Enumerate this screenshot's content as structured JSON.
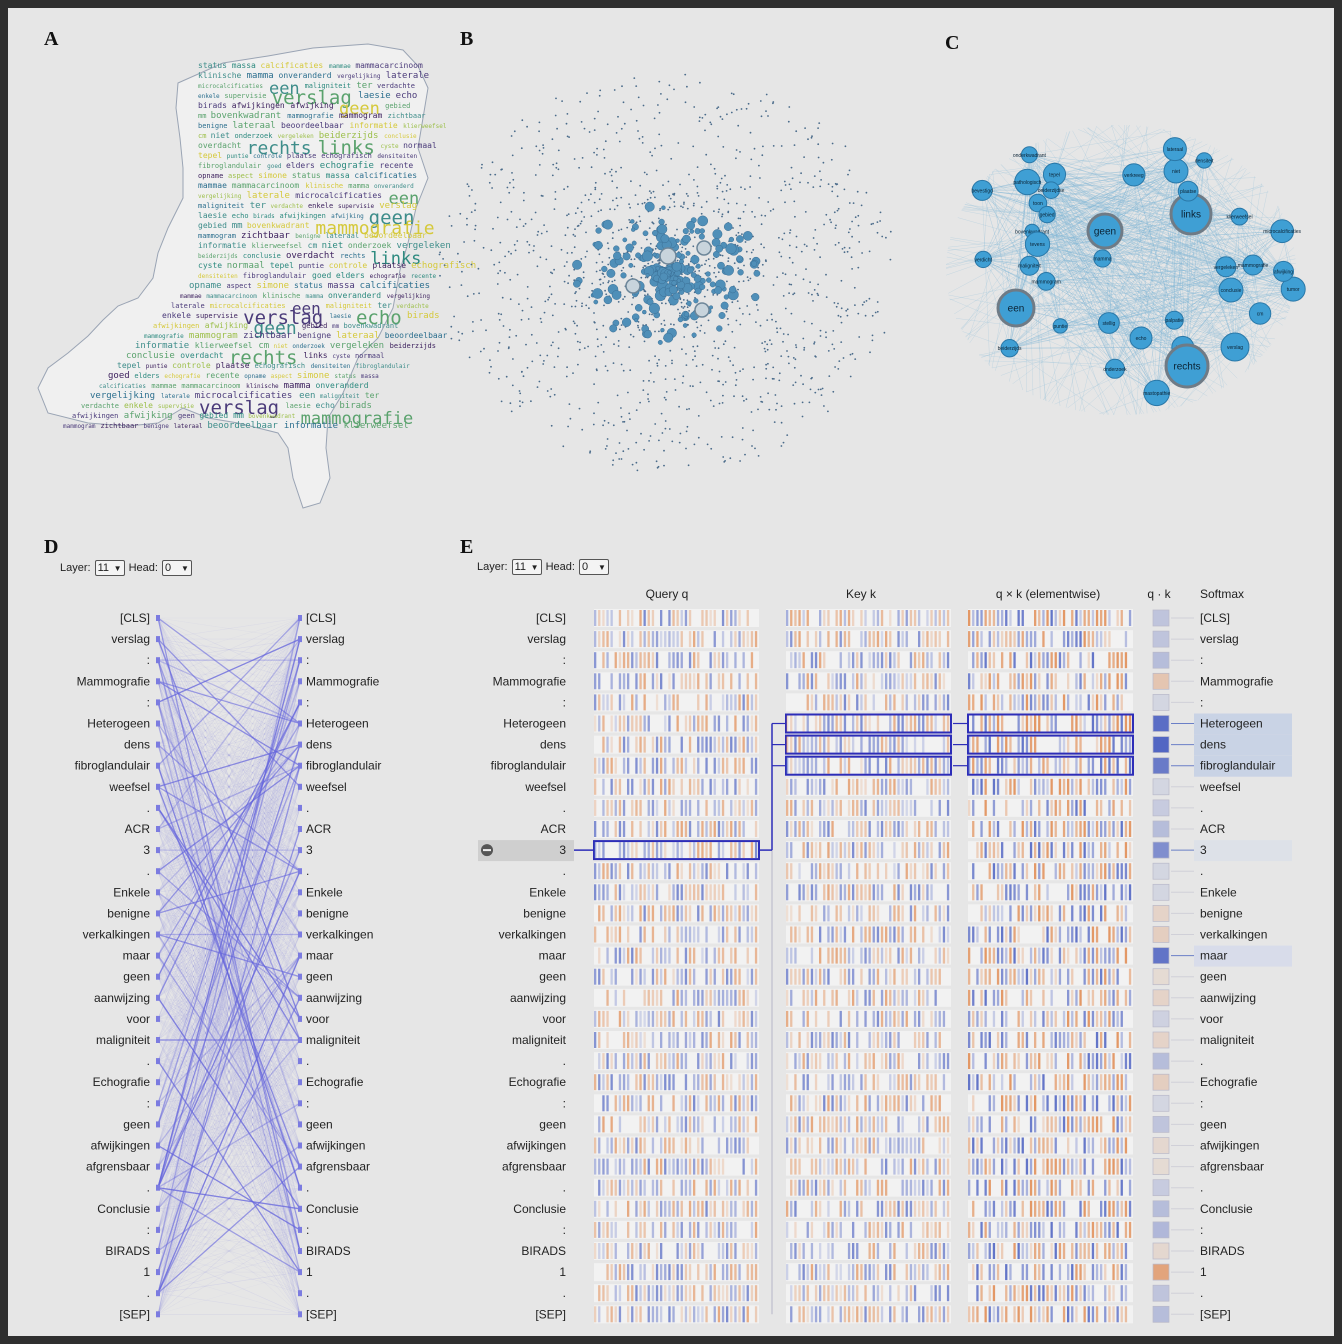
{
  "panels": {
    "a": "A",
    "b": "B",
    "c": "C",
    "d": "D",
    "e": "E"
  },
  "controls": {
    "layer_label": "Layer:",
    "layer_value": "11",
    "head_label": "Head:",
    "head_value": "0"
  },
  "wordcloud": {
    "words": [
      "status",
      "massa",
      "calcificaties",
      "mammae",
      "mammacarcinoom",
      "klinische",
      "mamma",
      "onveranderd",
      "vergelijking",
      "laterale",
      "microcalcificaties",
      "een",
      "maligniteit",
      "ter",
      "verdachte",
      "enkele",
      "supervisie",
      "verslag",
      "laesie",
      "echo",
      "birads",
      "afwijkingen",
      "afwijking",
      "geen",
      "gebied",
      "mm",
      "bovenkwadrant",
      "mammografie",
      "mammogram",
      "zichtbaar",
      "benigne",
      "lateraal",
      "beoordeelbaar",
      "informatie",
      "klierweefsel",
      "cm",
      "niet",
      "onderzoek",
      "vergeleken",
      "beiderzijds",
      "conclusie",
      "overdacht",
      "rechts",
      "links",
      "cyste",
      "normaal",
      "tepel",
      "puntie",
      "controle",
      "plaatse",
      "echografisch",
      "densiteiten",
      "fibroglandulair",
      "goed",
      "elders",
      "echografie",
      "recente",
      "opname",
      "aspect",
      "simone"
    ],
    "colors": [
      "#3b1f5c",
      "#2c6f8e",
      "#3e8d8a",
      "#5aa26d",
      "#9cbf4a",
      "#d5c93b",
      "#4b3b7a",
      "#2d8a7f"
    ]
  },
  "network": {
    "labels": [
      "bevestigd",
      "laesie",
      "toon",
      "niet",
      "mastopathie",
      "onderzoek",
      "links",
      "verkreeg",
      "bovenkwadrant",
      "lateraal",
      "geen",
      "tepel",
      "beiderzijds",
      "beiderzijdse",
      "mamma",
      "echo",
      "een",
      "cm",
      "mammografie",
      "conclusie",
      "verslag",
      "rechts",
      "tumor",
      "maligniteit",
      "gebied",
      "afwijking",
      "klierweefsel",
      "supervisie",
      "puntie",
      "stellig",
      "microcalcificaties",
      "onderkwadrant",
      "mammogram",
      "palpatie",
      "tevens",
      "plaatse",
      "pathologisch",
      "verdicht",
      "vergeleken",
      "densiteit"
    ],
    "big_nodes": [
      "links",
      "geen",
      "een",
      "rechts"
    ]
  },
  "attention": {
    "tokens_left": [
      "[CLS]",
      "verslag",
      ":",
      "Mammografie",
      ":",
      "Heterogeen",
      "dens",
      "fibroglandulair",
      "weefsel",
      ".",
      "ACR",
      "3",
      ".",
      "Enkele",
      "benigne",
      "verkalkingen",
      "maar",
      "geen",
      "aanwijzing",
      "voor",
      "maligniteit",
      ".",
      "Echografie",
      ":",
      "geen",
      "afwijkingen",
      "afgrensbaar",
      ".",
      "Conclusie",
      ":",
      "BIRADS",
      "1",
      ".",
      "[SEP]"
    ],
    "tokens_right": [
      "[CLS]",
      "verslag",
      ":",
      "Mammografie",
      ":",
      "Heterogeen",
      "dens",
      "fibroglandulair",
      "weefsel",
      ".",
      "ACR",
      "3",
      ".",
      "Enkele",
      "benigne",
      "verkalkingen",
      "maar",
      "geen",
      "aanwijzing",
      "voor",
      "maligniteit",
      ".",
      "Echografie",
      ":",
      "geen",
      "afwijkingen",
      "afgrensbaar",
      ".",
      "Conclusie",
      ":",
      "BIRADS",
      "1",
      ".",
      "[SEP]"
    ],
    "line_color": "#6666dd"
  },
  "neuron": {
    "columns": [
      "Query q",
      "Key k",
      "q × k (elementwise)",
      "q · k",
      "Softmax"
    ],
    "selected_token": "3",
    "highlight_color": "#2d2db8",
    "neg_color": "#4a5fc1",
    "pos_color": "#e0884e",
    "softmax_highlight": [
      "Heterogeen",
      "dens",
      "fibroglandulair",
      "3",
      "maar"
    ],
    "qk_scores": [
      0.25,
      0.25,
      0.3,
      -0.35,
      0.0,
      0.9,
      0.95,
      0.8,
      0.1,
      0.2,
      0.3,
      0.65,
      0.1,
      0.0,
      -0.2,
      -0.25,
      0.85,
      -0.1,
      -0.2,
      0.15,
      -0.2,
      0.3,
      -0.25,
      0.1,
      0.25,
      -0.15,
      -0.1,
      0.2,
      0.3,
      0.35,
      -0.15,
      -0.7,
      0.25,
      0.3
    ]
  }
}
